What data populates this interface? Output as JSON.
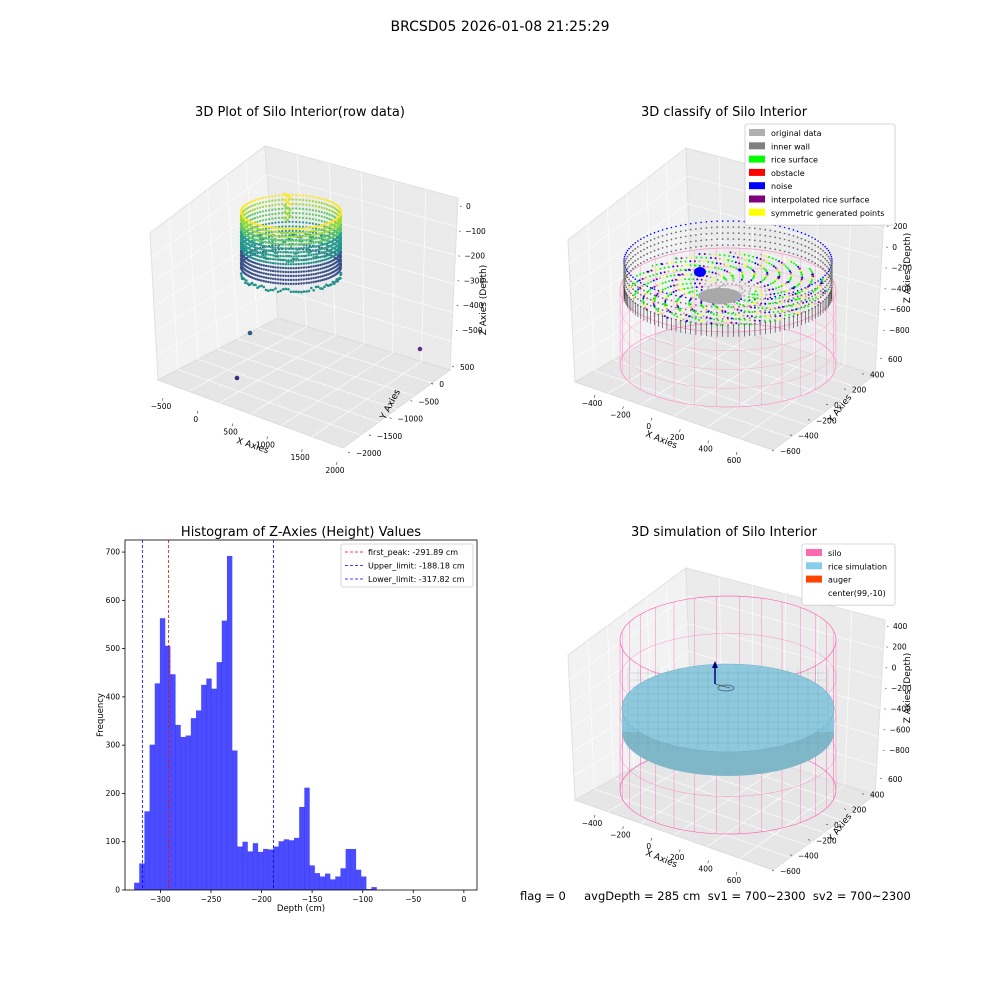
{
  "figure": {
    "title": "BRCSD05 2026-01-08 21:25:29"
  },
  "panel1": {
    "title": "3D Plot of Silo Interior(row data)",
    "xlabel": "X Axies",
    "ylabel": "Y Axies",
    "zlabel": "Z Axies (Depth)",
    "xticks": [
      "−500",
      "0",
      "500",
      "1000",
      "1500",
      "2000"
    ],
    "yticks": [
      "−2000",
      "−1500",
      "−1000",
      "−500",
      "0",
      "500"
    ],
    "zticks": [
      "−500",
      "−400",
      "−300",
      "−200",
      "−100",
      "0"
    ],
    "colormap": "viridis"
  },
  "panel2": {
    "title": "3D classify of Silo Interior",
    "xlabel": "X Axies",
    "ylabel": "Y Axies",
    "zlabel": "Z Axies (Depth)",
    "xticks": [
      "−400",
      "−200",
      "0",
      "200",
      "400",
      "600"
    ],
    "yticks": [
      "−600",
      "−400",
      "−200",
      "0",
      "200",
      "400",
      "600"
    ],
    "zticks": [
      "−800",
      "−600",
      "−400",
      "−200",
      "0",
      "200"
    ],
    "legend": [
      {
        "label": "original data",
        "color": "#b0b0b0"
      },
      {
        "label": "inner wall",
        "color": "#808080"
      },
      {
        "label": "rice surface",
        "color": "#00ff00"
      },
      {
        "label": "obstacle",
        "color": "#ff0000"
      },
      {
        "label": "noise",
        "color": "#0000ff"
      },
      {
        "label": "interpolated rice surface",
        "color": "#800080"
      },
      {
        "label": "symmetric generated points",
        "color": "#ffff00"
      }
    ]
  },
  "panel3": {
    "title": "3D simulation of Silo Interior",
    "xlabel": "X Axies",
    "ylabel": "Y Axies",
    "zlabel": "Z Axies (Depth)",
    "xticks": [
      "−400",
      "−200",
      "0",
      "200",
      "400",
      "600"
    ],
    "yticks": [
      "−600",
      "−400",
      "−200",
      "0",
      "200",
      "400",
      "600"
    ],
    "zticks": [
      "−800",
      "−600",
      "−400",
      "−200",
      "0",
      "200",
      "400"
    ],
    "legend": [
      {
        "label": "silo",
        "color": "#ff69b4"
      },
      {
        "label": "rice simulation",
        "color": "#87ceeb"
      },
      {
        "label": "auger",
        "color": "#ff4500"
      },
      {
        "label": "center(99,-10)",
        "color": "#ffffff"
      }
    ],
    "caption": "flag = 0     avgDepth = 285 cm  sv1 = 700~2300  sv2 = 700~2300"
  },
  "chart_data": {
    "type": "bar",
    "title": "Histogram of Z-Axies (Height) Values",
    "xlabel": "Depth (cm)",
    "ylabel": "Frequency",
    "bar_color": "#0000ff",
    "xlim": [
      -335,
      13
    ],
    "ylim": [
      0,
      725
    ],
    "bin_start": -326,
    "bin_width": 5.1,
    "values": [
      15,
      55,
      163,
      301,
      428,
      563,
      506,
      447,
      342,
      317,
      320,
      356,
      372,
      425,
      438,
      417,
      472,
      558,
      692,
      289,
      90,
      100,
      80,
      97,
      79,
      85,
      84,
      90,
      101,
      105,
      103,
      108,
      172,
      212,
      51,
      35,
      28,
      34,
      22,
      28,
      45,
      85,
      85,
      42,
      28,
      2,
      6
    ],
    "xtick_values": [
      -300,
      -250,
      -200,
      -150,
      -100,
      -50,
      0
    ],
    "xtick_labels": [
      "−300",
      "−250",
      "−200",
      "−150",
      "−100",
      "−50",
      "0"
    ],
    "ytick_values": [
      0,
      100,
      200,
      300,
      400,
      500,
      600,
      700
    ],
    "ytick_labels": [
      "0",
      "100",
      "200",
      "300",
      "400",
      "500",
      "600",
      "700"
    ],
    "lines": [
      {
        "label": "first_peak: -291.89 cm",
        "x": -291.89,
        "color": "#ff0000"
      },
      {
        "label": "Upper_limit: -188.18 cm",
        "x": -188.18,
        "color": "#0000ff"
      },
      {
        "label": "Lower_limit: -317.82 cm",
        "x": -317.82,
        "color": "#0000ff"
      }
    ],
    "legend_position": "upper right"
  }
}
